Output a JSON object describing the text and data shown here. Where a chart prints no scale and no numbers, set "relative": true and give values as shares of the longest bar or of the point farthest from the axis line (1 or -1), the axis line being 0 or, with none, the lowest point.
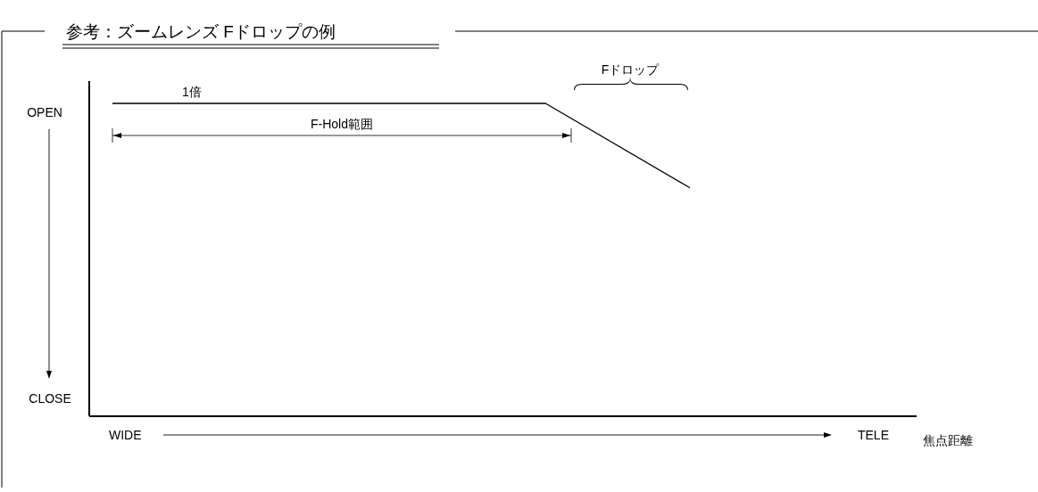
{
  "chart_data": {
    "type": "line",
    "title": "参考：ズームレンズ Fドロップの例",
    "relative": true,
    "categories": [
      null,
      null,
      null,
      null,
      null
    ],
    "series": [
      {
        "color": "#000000",
        "values": [
          1,
          1,
          1,
          1,
          0.73
        ]
      }
    ],
    "annotations": [
      "1倍",
      "F-Hold範囲",
      "Fドロップ",
      "OPEN",
      "CLOSE",
      "WIDE",
      "TELE",
      "焦点距離"
    ]
  }
}
